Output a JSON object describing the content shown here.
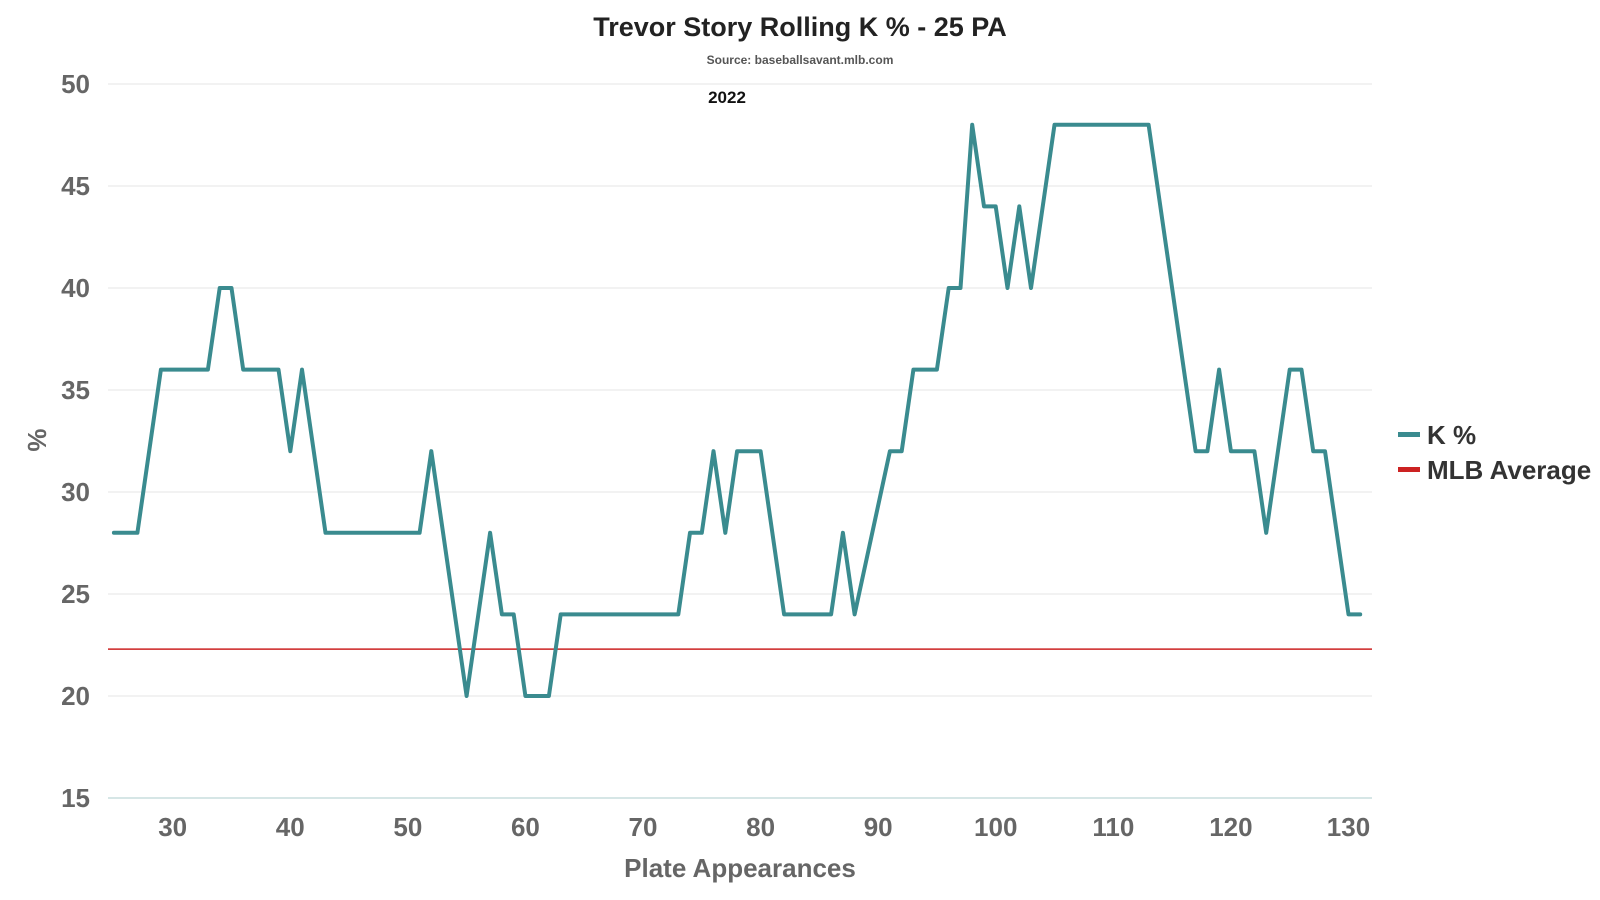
{
  "chart_data": {
    "type": "line",
    "title": "Trevor Story Rolling K % - 25 PA",
    "subtitle": "Source: baseballsavant.mlb.com",
    "annotation": "2022",
    "xlabel": "Plate Appearances",
    "ylabel": "%",
    "xlim": [
      24.5,
      132
    ],
    "ylim": [
      15,
      50
    ],
    "xticks": [
      30,
      40,
      50,
      60,
      70,
      80,
      90,
      100,
      110,
      120,
      130
    ],
    "yticks": [
      15,
      20,
      25,
      30,
      35,
      40,
      45,
      50
    ],
    "grid": true,
    "legend_position": "right",
    "colors": {
      "k_pct": "#3a8b8f",
      "mlb_avg": "#cc2222",
      "grid": "#e6e6e6",
      "axis": "#c8dede"
    },
    "series": [
      {
        "name": "K %",
        "x": [
          25,
          27,
          29,
          30,
          33,
          34,
          35,
          36,
          39,
          40,
          41,
          43,
          44,
          51,
          52,
          55,
          57,
          58,
          59,
          60,
          62,
          63,
          73,
          74,
          75,
          76,
          77,
          78,
          80,
          82,
          86,
          87,
          88,
          91,
          92,
          93,
          95,
          96,
          97,
          98,
          99,
          100,
          101,
          102,
          103,
          105,
          113,
          117,
          118,
          119,
          120,
          122,
          123,
          125,
          126,
          127,
          128,
          130,
          131
        ],
        "values": [
          28,
          28,
          36,
          36,
          36,
          40,
          40,
          36,
          36,
          32,
          36,
          28,
          28,
          28,
          32,
          20,
          28,
          24,
          24,
          20,
          20,
          24,
          24,
          28,
          28,
          32,
          28,
          32,
          32,
          24,
          24,
          28,
          24,
          32,
          32,
          36,
          36,
          40,
          40,
          48,
          44,
          44,
          40,
          44,
          40,
          48,
          48,
          32,
          32,
          36,
          32,
          32,
          28,
          36,
          36,
          32,
          32,
          24,
          24
        ]
      },
      {
        "name": "MLB Average",
        "value": 22.3
      }
    ]
  }
}
